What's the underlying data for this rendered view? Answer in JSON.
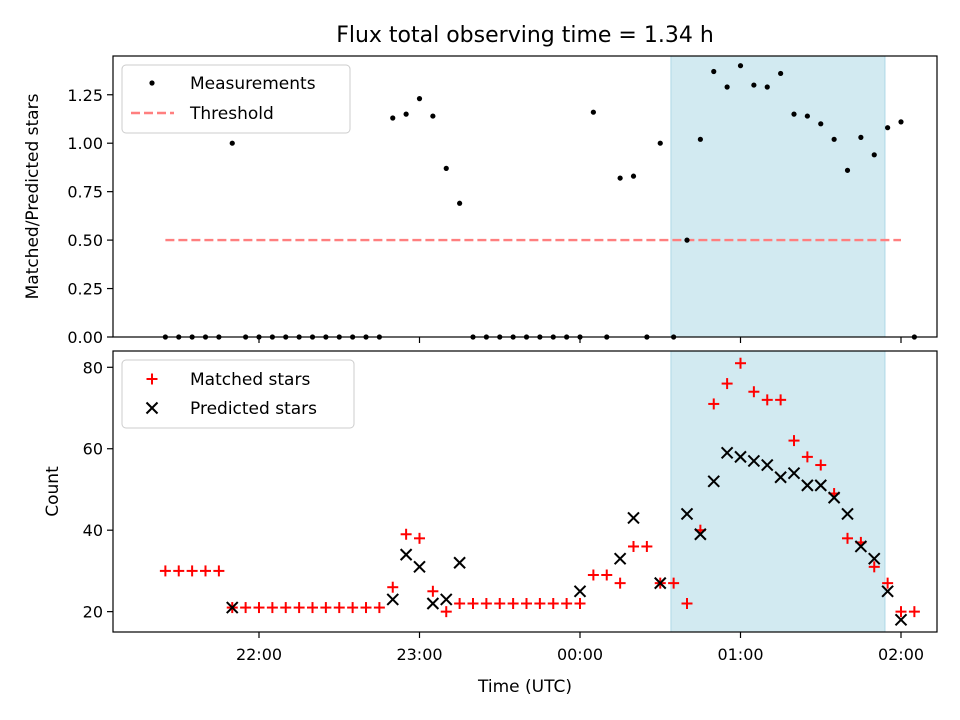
{
  "chart_data": [
    {
      "type": "scatter",
      "title": "Flux total observing time = 1.34 h",
      "xlabel": "",
      "ylabel": "Matched/Predicted stars",
      "ylim": [
        0,
        1.45
      ],
      "yticks": [
        "0.00",
        "0.25",
        "0.50",
        "0.75",
        "1.00",
        "1.25"
      ],
      "legend_position": "top-left",
      "shaded_interval": {
        "start": "00:34",
        "end": "01:54",
        "color": "#add8e6"
      },
      "threshold": {
        "name": "Threshold",
        "value": 0.5,
        "from": "21:25",
        "to": "02:00",
        "color": "#ff7f7f"
      },
      "series": [
        {
          "name": "Measurements",
          "marker": "dot",
          "color": "#000000",
          "points": [
            [
              "21:25",
              0
            ],
            [
              "21:30",
              0
            ],
            [
              "21:35",
              0
            ],
            [
              "21:40",
              0
            ],
            [
              "21:45",
              0
            ],
            [
              "21:50",
              1.0
            ],
            [
              "21:55",
              0
            ],
            [
              "22:00",
              0
            ],
            [
              "22:05",
              0
            ],
            [
              "22:10",
              0
            ],
            [
              "22:15",
              0
            ],
            [
              "22:20",
              0
            ],
            [
              "22:25",
              0
            ],
            [
              "22:30",
              0
            ],
            [
              "22:35",
              0
            ],
            [
              "22:40",
              0
            ],
            [
              "22:45",
              0
            ],
            [
              "22:50",
              1.13
            ],
            [
              "22:55",
              1.15
            ],
            [
              "23:00",
              1.23
            ],
            [
              "23:05",
              1.14
            ],
            [
              "23:10",
              0.87
            ],
            [
              "23:15",
              0.69
            ],
            [
              "23:20",
              0
            ],
            [
              "23:25",
              0
            ],
            [
              "23:30",
              0
            ],
            [
              "23:35",
              0
            ],
            [
              "23:40",
              0
            ],
            [
              "23:45",
              0
            ],
            [
              "23:50",
              0
            ],
            [
              "23:55",
              0
            ],
            [
              "00:00",
              0
            ],
            [
              "00:05",
              1.16
            ],
            [
              "00:10",
              0
            ],
            [
              "00:15",
              0.82
            ],
            [
              "00:20",
              0.83
            ],
            [
              "00:25",
              0
            ],
            [
              "00:30",
              1.0
            ],
            [
              "00:35",
              0
            ],
            [
              "00:40",
              0.5
            ],
            [
              "00:45",
              1.02
            ],
            [
              "00:50",
              1.37
            ],
            [
              "00:55",
              1.29
            ],
            [
              "01:00",
              1.4
            ],
            [
              "01:05",
              1.3
            ],
            [
              "01:10",
              1.29
            ],
            [
              "01:15",
              1.36
            ],
            [
              "01:20",
              1.15
            ],
            [
              "01:25",
              1.14
            ],
            [
              "01:30",
              1.1
            ],
            [
              "01:35",
              1.02
            ],
            [
              "01:40",
              0.86
            ],
            [
              "01:45",
              1.03
            ],
            [
              "01:50",
              0.94
            ],
            [
              "01:55",
              1.08
            ],
            [
              "02:00",
              1.11
            ],
            [
              "02:05",
              0
            ]
          ]
        }
      ]
    },
    {
      "type": "scatter",
      "title": "",
      "xlabel": "Time (UTC)",
      "ylabel": "Count",
      "ylim": [
        15,
        84
      ],
      "yticks": [
        "20",
        "40",
        "60",
        "80"
      ],
      "xticks": [
        "22:00",
        "23:00",
        "00:00",
        "01:00",
        "02:00"
      ],
      "legend_position": "top-left",
      "series": [
        {
          "name": "Matched stars",
          "marker": "plus",
          "color": "#ff0000",
          "points": [
            [
              "21:25",
              30
            ],
            [
              "21:30",
              30
            ],
            [
              "21:35",
              30
            ],
            [
              "21:40",
              30
            ],
            [
              "21:45",
              30
            ],
            [
              "21:50",
              21
            ],
            [
              "21:55",
              21
            ],
            [
              "22:00",
              21
            ],
            [
              "22:05",
              21
            ],
            [
              "22:10",
              21
            ],
            [
              "22:15",
              21
            ],
            [
              "22:20",
              21
            ],
            [
              "22:25",
              21
            ],
            [
              "22:30",
              21
            ],
            [
              "22:35",
              21
            ],
            [
              "22:40",
              21
            ],
            [
              "22:45",
              21
            ],
            [
              "22:50",
              26
            ],
            [
              "22:55",
              39
            ],
            [
              "23:00",
              38
            ],
            [
              "23:05",
              25
            ],
            [
              "23:10",
              20
            ],
            [
              "23:15",
              22
            ],
            [
              "23:20",
              22
            ],
            [
              "23:25",
              22
            ],
            [
              "23:30",
              22
            ],
            [
              "23:35",
              22
            ],
            [
              "23:40",
              22
            ],
            [
              "23:45",
              22
            ],
            [
              "23:50",
              22
            ],
            [
              "23:55",
              22
            ],
            [
              "00:00",
              22
            ],
            [
              "00:05",
              29
            ],
            [
              "00:10",
              29
            ],
            [
              "00:15",
              27
            ],
            [
              "00:20",
              36
            ],
            [
              "00:25",
              36
            ],
            [
              "00:30",
              27
            ],
            [
              "00:35",
              27
            ],
            [
              "00:40",
              22
            ],
            [
              "00:45",
              40
            ],
            [
              "00:50",
              71
            ],
            [
              "00:55",
              76
            ],
            [
              "01:00",
              81
            ],
            [
              "01:05",
              74
            ],
            [
              "01:10",
              72
            ],
            [
              "01:15",
              72
            ],
            [
              "01:20",
              62
            ],
            [
              "01:25",
              58
            ],
            [
              "01:30",
              56
            ],
            [
              "01:35",
              49
            ],
            [
              "01:40",
              38
            ],
            [
              "01:45",
              37
            ],
            [
              "01:50",
              31
            ],
            [
              "01:55",
              27
            ],
            [
              "02:00",
              20
            ],
            [
              "02:05",
              20
            ]
          ]
        },
        {
          "name": "Predicted stars",
          "marker": "x",
          "color": "#000000",
          "points": [
            [
              "21:50",
              21
            ],
            [
              "22:50",
              23
            ],
            [
              "22:55",
              34
            ],
            [
              "23:00",
              31
            ],
            [
              "23:05",
              22
            ],
            [
              "23:10",
              23
            ],
            [
              "23:15",
              32
            ],
            [
              "00:00",
              25
            ],
            [
              "00:15",
              33
            ],
            [
              "00:20",
              43
            ],
            [
              "00:30",
              27
            ],
            [
              "00:40",
              44
            ],
            [
              "00:45",
              39
            ],
            [
              "00:50",
              52
            ],
            [
              "00:55",
              59
            ],
            [
              "01:00",
              58
            ],
            [
              "01:05",
              57
            ],
            [
              "01:10",
              56
            ],
            [
              "01:15",
              53
            ],
            [
              "01:20",
              54
            ],
            [
              "01:25",
              51
            ],
            [
              "01:30",
              51
            ],
            [
              "01:35",
              48
            ],
            [
              "01:40",
              44
            ],
            [
              "01:45",
              36
            ],
            [
              "01:50",
              33
            ],
            [
              "01:55",
              25
            ],
            [
              "02:00",
              18
            ]
          ]
        }
      ]
    }
  ]
}
